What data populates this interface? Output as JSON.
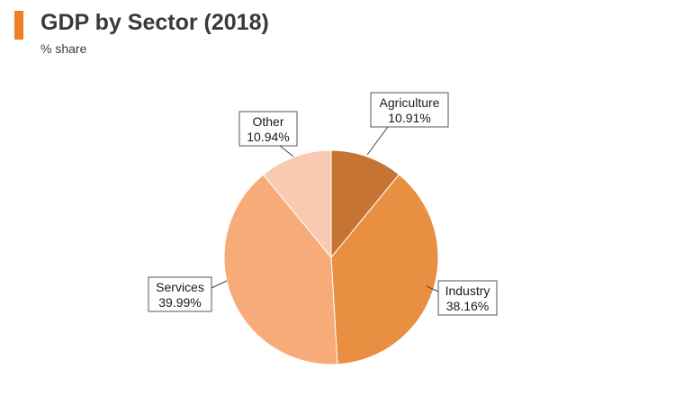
{
  "header": {
    "title": "GDP by Sector (2018)",
    "subtitle": "% share",
    "accent_color": "#f07f24"
  },
  "chart_data": {
    "type": "pie",
    "title": "GDP by Sector (2018)",
    "subtitle": "% share",
    "slices": [
      {
        "label": "Agriculture",
        "value": 10.91,
        "value_text": "10.91%",
        "color": "#c57434"
      },
      {
        "label": "Industry",
        "value": 38.16,
        "value_text": "38.16%",
        "color": "#e88f42"
      },
      {
        "label": "Services",
        "value": 39.99,
        "value_text": "39.99%",
        "color": "#f7ab79"
      },
      {
        "label": "Other",
        "value": 10.94,
        "value_text": "10.94%",
        "color": "#fac9b2"
      }
    ],
    "start_angle": "12 o'clock",
    "direction": "clockwise",
    "labels": "callout boxes with leader lines"
  }
}
